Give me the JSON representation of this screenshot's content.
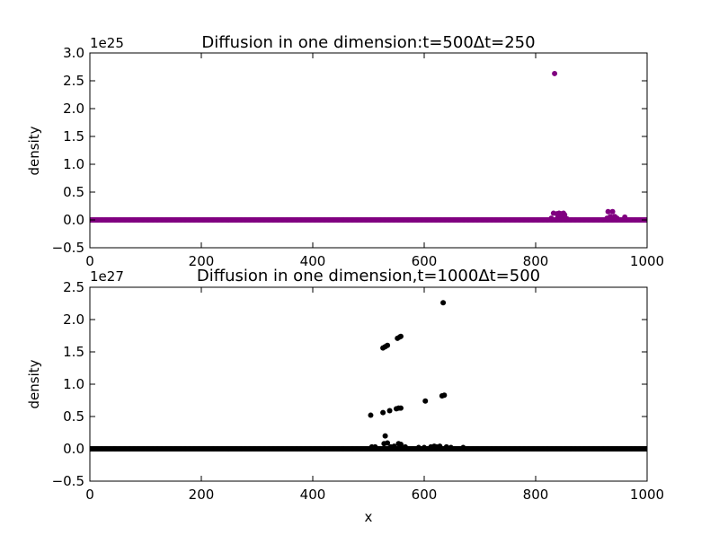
{
  "chart_data": [
    {
      "type": "scatter",
      "title": "Diffusion in one dimension:t=500Δt=250",
      "xlabel": "",
      "ylabel": "density",
      "offset_text": "1e25",
      "scale": 1e+25,
      "xlim": [
        0,
        1000
      ],
      "ylim": [
        -0.5,
        3.0
      ],
      "xticks": [
        0,
        200,
        400,
        600,
        800,
        1000
      ],
      "xtick_labels": [
        "0",
        "200",
        "400",
        "600",
        "800",
        "1000"
      ],
      "yticks": [
        -0.5,
        0.0,
        0.5,
        1.0,
        1.5,
        2.0,
        2.5,
        3.0
      ],
      "ytick_labels": [
        "−0.5",
        "0.0",
        "0.5",
        "1.0",
        "1.5",
        "2.0",
        "2.5",
        "3.0"
      ],
      "color": "#800080",
      "grid": false,
      "baseline": {
        "x_start": 0,
        "x_end": 1000,
        "x_step": 2,
        "y": 0
      },
      "points": [
        {
          "x": 834,
          "y": 2.63
        },
        {
          "x": 832,
          "y": 0.12
        },
        {
          "x": 838,
          "y": 0.11
        },
        {
          "x": 842,
          "y": 0.12
        },
        {
          "x": 846,
          "y": 0.11
        },
        {
          "x": 850,
          "y": 0.12
        },
        {
          "x": 852,
          "y": 0.09
        },
        {
          "x": 828,
          "y": 0.03
        },
        {
          "x": 840,
          "y": 0.05
        },
        {
          "x": 848,
          "y": 0.06
        },
        {
          "x": 856,
          "y": 0.02
        },
        {
          "x": 930,
          "y": 0.15
        },
        {
          "x": 938,
          "y": 0.15
        },
        {
          "x": 934,
          "y": 0.06
        },
        {
          "x": 942,
          "y": 0.06
        },
        {
          "x": 928,
          "y": 0.03
        },
        {
          "x": 946,
          "y": 0.03
        },
        {
          "x": 960,
          "y": 0.05
        }
      ]
    },
    {
      "type": "scatter",
      "title": "Diffusion in one dimension,t=1000Δt=500",
      "xlabel": "x",
      "ylabel": "density",
      "offset_text": "1e27",
      "scale": 1e+27,
      "xlim": [
        0,
        1000
      ],
      "ylim": [
        -0.5,
        2.5
      ],
      "xticks": [
        0,
        200,
        400,
        600,
        800,
        1000
      ],
      "xtick_labels": [
        "0",
        "200",
        "400",
        "600",
        "800",
        "1000"
      ],
      "yticks": [
        -0.5,
        0.0,
        0.5,
        1.0,
        1.5,
        2.0,
        2.5
      ],
      "ytick_labels": [
        "−0.5",
        "0.0",
        "0.5",
        "1.0",
        "1.5",
        "2.0",
        "2.5"
      ],
      "color": "#000000",
      "grid": false,
      "baseline": {
        "x_start": 0,
        "x_end": 1000,
        "x_step": 2,
        "y": 0
      },
      "points": [
        {
          "x": 634,
          "y": 2.26
        },
        {
          "x": 552,
          "y": 1.71
        },
        {
          "x": 556,
          "y": 1.73
        },
        {
          "x": 558,
          "y": 1.74
        },
        {
          "x": 526,
          "y": 1.56
        },
        {
          "x": 530,
          "y": 1.58
        },
        {
          "x": 534,
          "y": 1.6
        },
        {
          "x": 636,
          "y": 0.83
        },
        {
          "x": 632,
          "y": 0.82
        },
        {
          "x": 602,
          "y": 0.74
        },
        {
          "x": 550,
          "y": 0.62
        },
        {
          "x": 554,
          "y": 0.63
        },
        {
          "x": 558,
          "y": 0.63
        },
        {
          "x": 538,
          "y": 0.59
        },
        {
          "x": 526,
          "y": 0.56
        },
        {
          "x": 504,
          "y": 0.52
        },
        {
          "x": 530,
          "y": 0.2
        },
        {
          "x": 528,
          "y": 0.08
        },
        {
          "x": 534,
          "y": 0.09
        },
        {
          "x": 554,
          "y": 0.08
        },
        {
          "x": 558,
          "y": 0.07
        },
        {
          "x": 506,
          "y": 0.03
        },
        {
          "x": 512,
          "y": 0.03
        },
        {
          "x": 540,
          "y": 0.03
        },
        {
          "x": 546,
          "y": 0.04
        },
        {
          "x": 566,
          "y": 0.03
        },
        {
          "x": 590,
          "y": 0.02
        },
        {
          "x": 600,
          "y": 0.02
        },
        {
          "x": 612,
          "y": 0.03
        },
        {
          "x": 618,
          "y": 0.04
        },
        {
          "x": 622,
          "y": 0.03
        },
        {
          "x": 628,
          "y": 0.04
        },
        {
          "x": 640,
          "y": 0.03
        },
        {
          "x": 648,
          "y": 0.02
        },
        {
          "x": 670,
          "y": 0.02
        }
      ]
    }
  ]
}
